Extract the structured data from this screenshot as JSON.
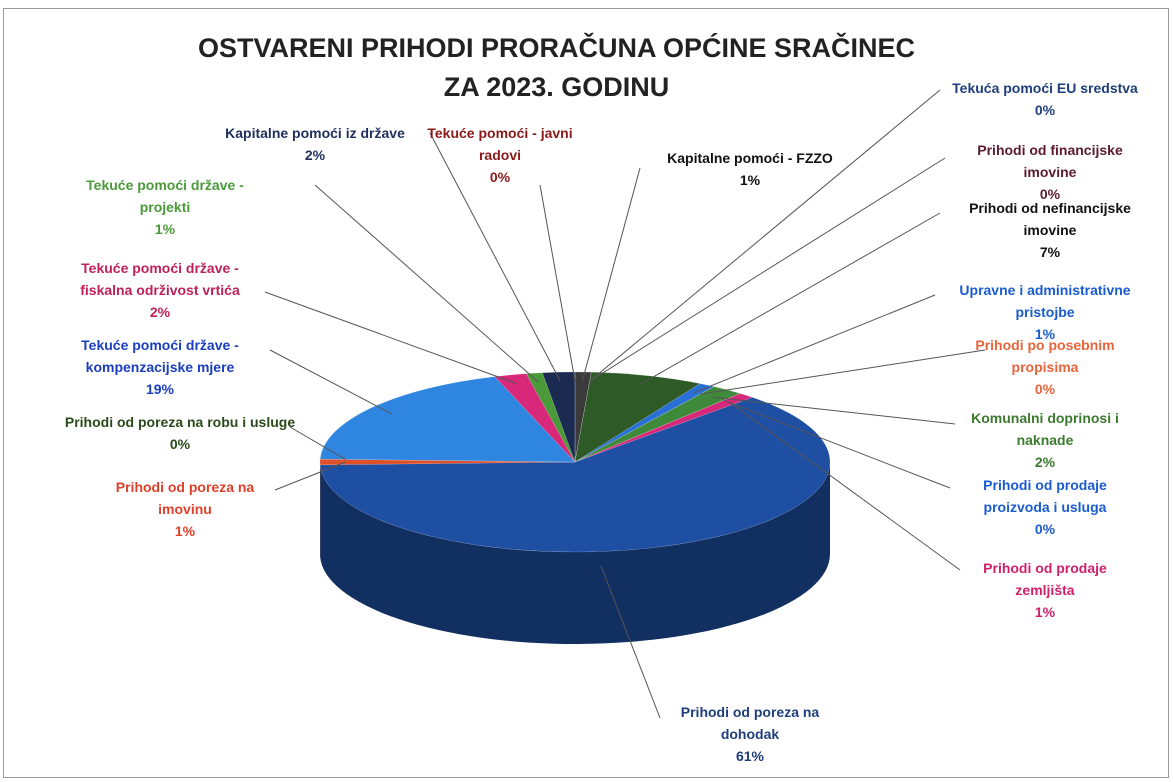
{
  "chart_data": {
    "type": "pie3d",
    "title": [
      "OSTVARENI PRIHODI PRORAČUNA OPĆINE SRAČINEC",
      "ZA 2023. GODINU"
    ],
    "categories": [
      "Kapitalne pomoći - FZZO",
      "Tekuća pomoći EU sredstva",
      "Prihodi od financijske imovine",
      "Prihodi od nefinancijske imovine",
      "Upravne i administrativne pristojbe",
      "Prihodi po posebnim propisima",
      "Komunalni doprinosi i naknade",
      "Prihodi od prodaje proizvoda i usluga",
      "Prihodi od prodaje zemljišta",
      "Prihodi od poreza na dohodak",
      "Prihodi od poreza na imovinu",
      "Prihodi od poreza na robu i usluge",
      "Tekuće pomoći države - kompenzacijske mjere",
      "Tekuće pomoći države - fiskalna održivost vrtića",
      "Tekuće pomoći države - projekti",
      "Kapitalne pomoći iz države",
      "Tekuće pomoći - javni radovi"
    ],
    "values": [
      1,
      0,
      0,
      7,
      1,
      0,
      2,
      0,
      1,
      61,
      1,
      0,
      19,
      2,
      1,
      2,
      0
    ],
    "value_labels": [
      "1%",
      "0%",
      "0%",
      "7%",
      "1%",
      "0%",
      "2%",
      "0%",
      "1%",
      "61%",
      "1%",
      "0%",
      "19%",
      "2%",
      "1%",
      "2%",
      "0%"
    ],
    "colors": [
      "#3a3a3a",
      "#1f4e9c",
      "#5c1a2e",
      "#2e5a28",
      "#2a6fd6",
      "#e8643a",
      "#3f8a3a",
      "#2a6fd6",
      "#d8287a",
      "#1e4fa3",
      "#e0502a",
      "#2a4a1a",
      "#2f86e0",
      "#d8287a",
      "#4a9a3a",
      "#1a2a50",
      "#8a1a1a"
    ],
    "label_colors": [
      "#111111",
      "#1f3e7c",
      "#5c1a2e",
      "#111111",
      "#1a5ccf",
      "#e8643a",
      "#3c7a2e",
      "#1a5ccf",
      "#d0206a",
      "#1f3e7c",
      "#e0402a",
      "#2a4a1a",
      "#1a3ec0",
      "#c0205a",
      "#4a9a3a",
      "#1f2f5c",
      "#8a1a1a"
    ]
  }
}
